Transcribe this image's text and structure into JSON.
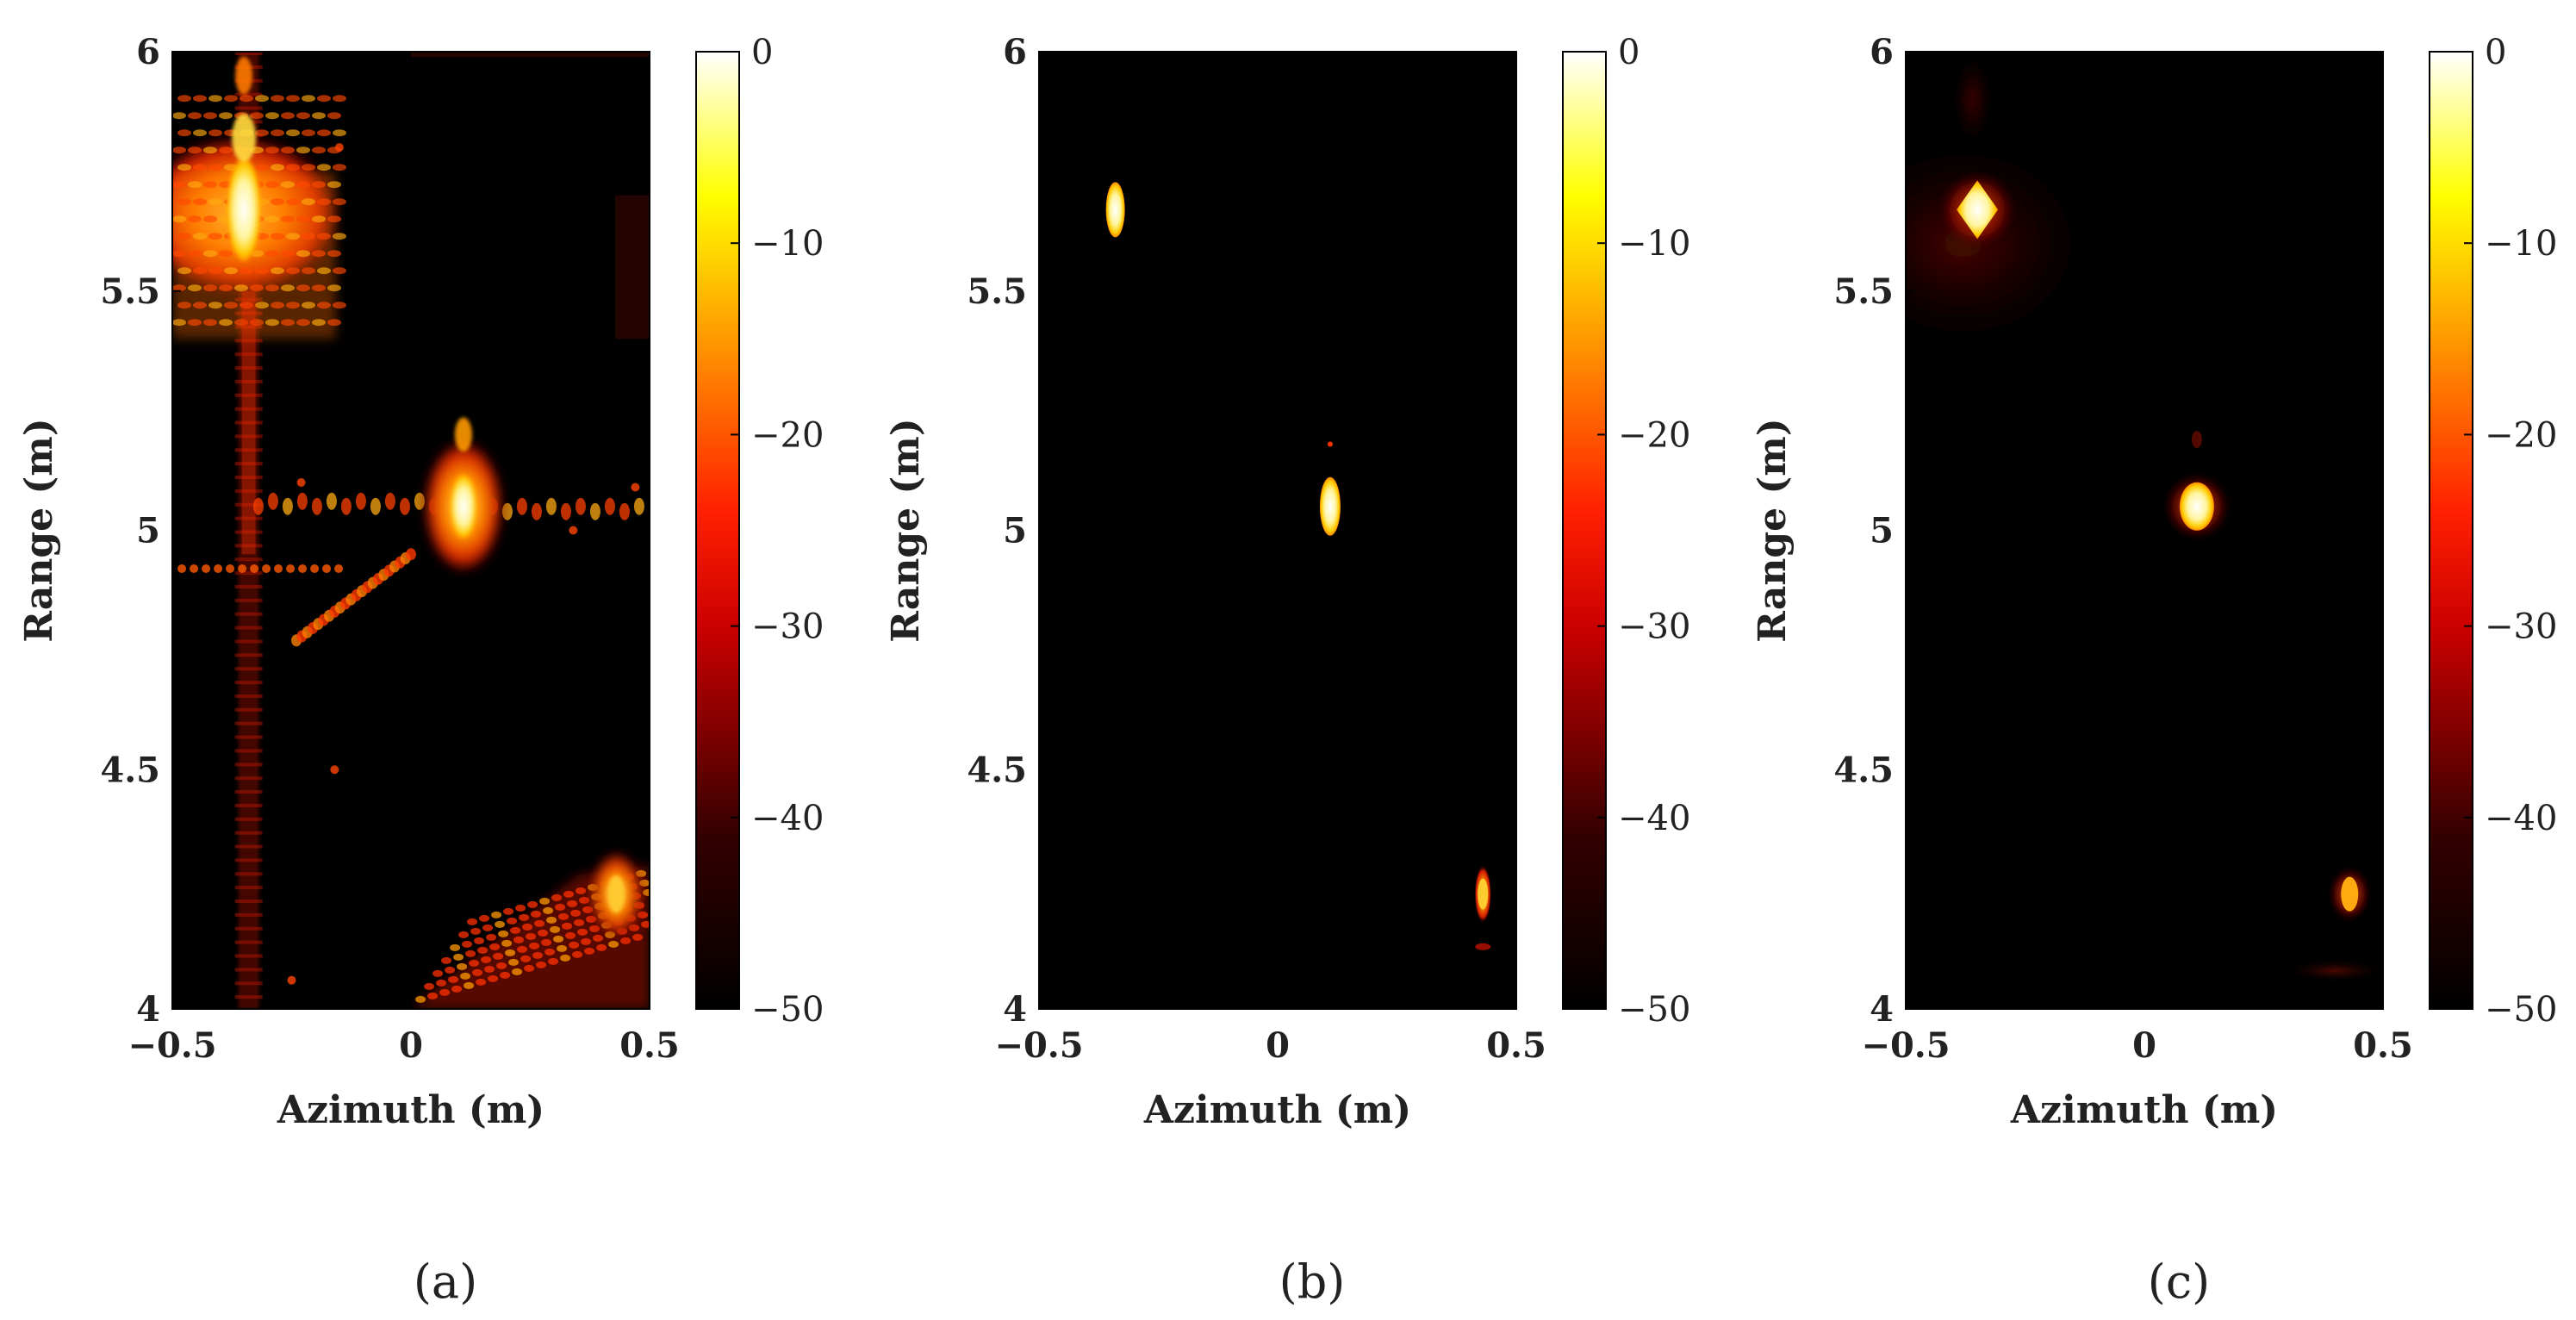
{
  "figure": {
    "panels": [
      "(a)",
      "(b)",
      "(c)"
    ]
  },
  "chart_data": [
    {
      "type": "heatmap",
      "panel_label": "a",
      "title": "",
      "xlabel": "Azimuth (m)",
      "ylabel": "Range (m)",
      "xlim": [
        -0.5,
        0.5
      ],
      "ylim": [
        4,
        6
      ],
      "xticks": [
        -0.5,
        0,
        0.5
      ],
      "xtick_labels": [
        "−0.5",
        "0",
        "0.5"
      ],
      "yticks": [
        4,
        4.5,
        5,
        5.5,
        6
      ],
      "ytick_labels": [
        "4",
        "4.5",
        "5",
        "5.5",
        "6"
      ],
      "colorbar": {
        "range": [
          -50,
          0
        ],
        "ticks": [
          0,
          -10,
          -20,
          -30,
          -40,
          -50
        ],
        "tick_labels": [
          "0",
          "−10",
          "−20",
          "−30",
          "−40",
          "−50"
        ],
        "colormap": "hot"
      },
      "targets": [
        {
          "azimuth": -0.35,
          "range": 5.67,
          "peak_db": 0
        },
        {
          "azimuth": 0.11,
          "range": 5.05,
          "peak_db": -3
        },
        {
          "azimuth": 0.43,
          "range": 4.24,
          "peak_db": -10
        }
      ],
      "artifacts": "strong sidelobes and clutter spread along range and azimuth"
    },
    {
      "type": "heatmap",
      "panel_label": "b",
      "title": "",
      "xlabel": "Azimuth (m)",
      "ylabel": "Range (m)",
      "xlim": [
        -0.5,
        0.5
      ],
      "ylim": [
        4,
        6
      ],
      "xticks": [
        -0.5,
        0,
        0.5
      ],
      "xtick_labels": [
        "−0.5",
        "0",
        "0.5"
      ],
      "yticks": [
        4,
        4.5,
        5,
        5.5,
        6
      ],
      "ytick_labels": [
        "4",
        "4.5",
        "5",
        "5.5",
        "6"
      ],
      "colorbar": {
        "range": [
          -50,
          0
        ],
        "ticks": [
          0,
          -10,
          -20,
          -30,
          -40,
          -50
        ],
        "tick_labels": [
          "0",
          "−10",
          "−20",
          "−30",
          "−40",
          "−50"
        ],
        "colormap": "hot"
      },
      "targets": [
        {
          "azimuth": -0.34,
          "range": 5.67,
          "peak_db": 0
        },
        {
          "azimuth": 0.11,
          "range": 5.05,
          "peak_db": 0
        },
        {
          "azimuth": 0.43,
          "range": 4.24,
          "peak_db": -5
        }
      ],
      "artifacts": "clean, compact point responses"
    },
    {
      "type": "heatmap",
      "panel_label": "c",
      "title": "",
      "xlabel": "Azimuth (m)",
      "ylabel": "Range (m)",
      "xlim": [
        -0.5,
        0.5
      ],
      "ylim": [
        4,
        6
      ],
      "xticks": [
        -0.5,
        0,
        0.5
      ],
      "xtick_labels": [
        "−0.5",
        "0",
        "0.5"
      ],
      "yticks": [
        4,
        4.5,
        5,
        5.5,
        6
      ],
      "ytick_labels": [
        "4",
        "4.5",
        "5",
        "5.5",
        "6"
      ],
      "colorbar": {
        "range": [
          -50,
          0
        ],
        "ticks": [
          0,
          -10,
          -20,
          -30,
          -40,
          -50
        ],
        "tick_labels": [
          "0",
          "−10",
          "−20",
          "−30",
          "−40",
          "−50"
        ],
        "colormap": "hot"
      },
      "targets": [
        {
          "azimuth": -0.35,
          "range": 5.67,
          "peak_db": 0
        },
        {
          "azimuth": 0.11,
          "range": 5.05,
          "peak_db": 0
        },
        {
          "azimuth": 0.43,
          "range": 4.24,
          "peak_db": -5
        }
      ],
      "artifacts": "point responses with faint surrounding glow"
    }
  ]
}
